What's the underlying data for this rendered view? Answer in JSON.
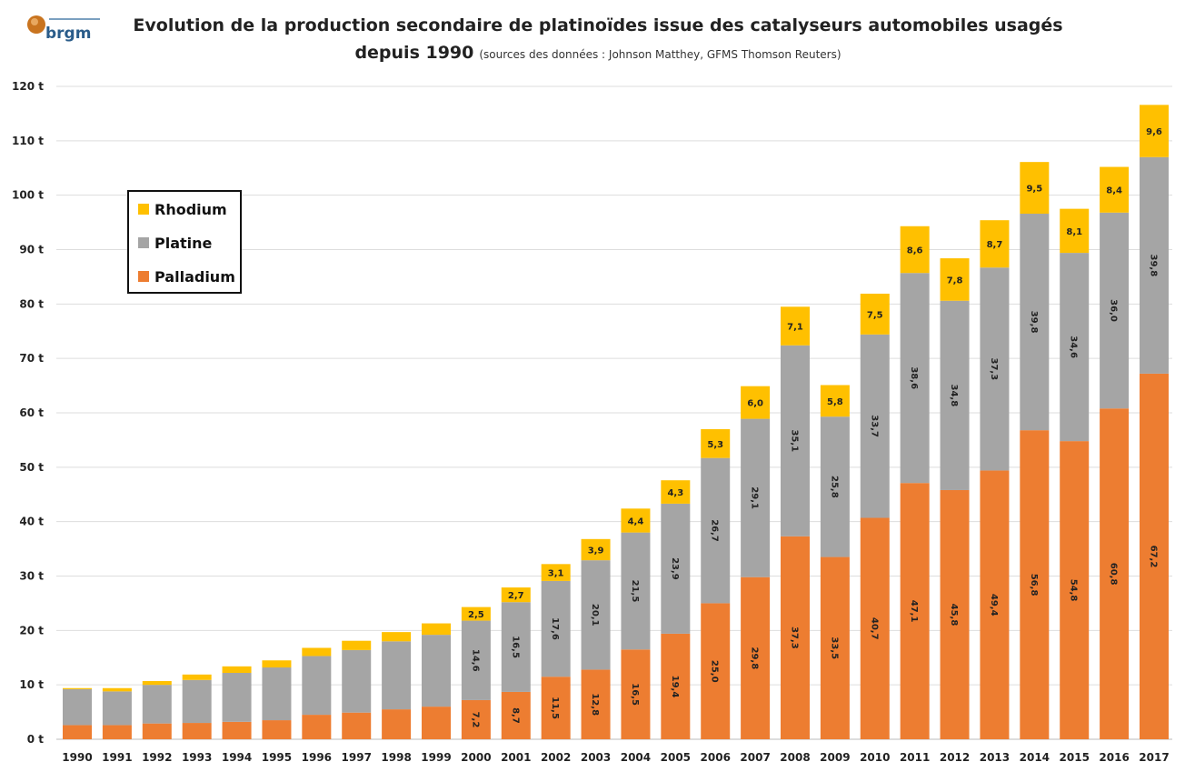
{
  "logo_text": "brgm",
  "chart_data": {
    "type": "bar",
    "stacked": true,
    "title_line1": "Evolution de la production secondaire de platinoïdes issue des catalyseurs automobiles usagés",
    "title_line2": "depuis 1990",
    "subtitle": "(sources des données : Johnson Matthey, GFMS Thomson Reuters)",
    "xlabel": "",
    "ylabel": "",
    "ylim": [
      0,
      120
    ],
    "yticks": [
      "0 t",
      "10 t",
      "20 t",
      "30 t",
      "40 t",
      "50 t",
      "60 t",
      "70 t",
      "80 t",
      "90 t",
      "100 t",
      "110 t",
      "120 t"
    ],
    "grid": true,
    "legend_placement": "top-left",
    "categories": [
      "1990",
      "1991",
      "1992",
      "1993",
      "1994",
      "1995",
      "1996",
      "1997",
      "1998",
      "1999",
      "2000",
      "2001",
      "2002",
      "2003",
      "2004",
      "2005",
      "2006",
      "2007",
      "2008",
      "2009",
      "2010",
      "2011",
      "2012",
      "2013",
      "2014",
      "2015",
      "2016",
      "2017"
    ],
    "series": [
      {
        "name": "Palladium",
        "color": "#ED7D31",
        "values": [
          2.6,
          2.6,
          2.9,
          3.0,
          3.2,
          3.5,
          4.5,
          4.9,
          5.5,
          6.0,
          7.2,
          8.7,
          11.5,
          12.8,
          16.5,
          19.4,
          25.0,
          29.8,
          37.3,
          33.5,
          40.7,
          47.1,
          45.8,
          49.4,
          56.8,
          54.8,
          60.8,
          67.2
        ],
        "labels": [
          null,
          null,
          null,
          null,
          null,
          null,
          null,
          null,
          null,
          null,
          "7,2",
          "8,7",
          "11,5",
          "12,8",
          "16,5",
          "19,4",
          "25,0",
          "29,8",
          "37,3",
          "33,5",
          "40,7",
          "47,1",
          "45,8",
          "49,4",
          "56,8",
          "54,8",
          "60,8",
          "67,2"
        ]
      },
      {
        "name": "Platine",
        "color": "#A5A5A5",
        "values": [
          6.6,
          6.2,
          7.1,
          7.9,
          9.0,
          9.7,
          10.8,
          11.5,
          12.5,
          13.2,
          14.6,
          16.5,
          17.6,
          20.1,
          21.5,
          23.9,
          26.7,
          29.1,
          35.1,
          25.8,
          33.7,
          38.6,
          34.8,
          37.3,
          39.8,
          34.6,
          36.0,
          39.8
        ],
        "labels": [
          null,
          null,
          null,
          null,
          null,
          null,
          null,
          null,
          null,
          null,
          "14,6",
          "16,5",
          "17,6",
          "20,1",
          "21,5",
          "23,9",
          "26,7",
          "29,1",
          "35,1",
          "25,8",
          "33,7",
          "38,6",
          "34,8",
          "37,3",
          "39,8",
          "34,6",
          "36,0",
          "39,8"
        ]
      },
      {
        "name": "Rhodium",
        "color": "#FFC000",
        "values": [
          0.2,
          0.6,
          0.7,
          1.0,
          1.2,
          1.3,
          1.5,
          1.7,
          1.7,
          2.1,
          2.5,
          2.7,
          3.1,
          3.9,
          4.4,
          4.3,
          5.3,
          6.0,
          7.1,
          5.8,
          7.5,
          8.6,
          7.8,
          8.7,
          9.5,
          8.1,
          8.4,
          9.6
        ],
        "labels": [
          null,
          null,
          null,
          null,
          null,
          null,
          null,
          null,
          null,
          null,
          "2,5",
          "2,7",
          "3,1",
          "3,9",
          "4,4",
          "4,3",
          "5,3",
          "6,0",
          "7,1",
          "5,8",
          "7,5",
          "8,6",
          "7,8",
          "8,7",
          "9,5",
          "8,1",
          "8,4",
          "9,6"
        ]
      }
    ],
    "legend_order": [
      "Rhodium",
      "Platine",
      "Palladium"
    ]
  }
}
